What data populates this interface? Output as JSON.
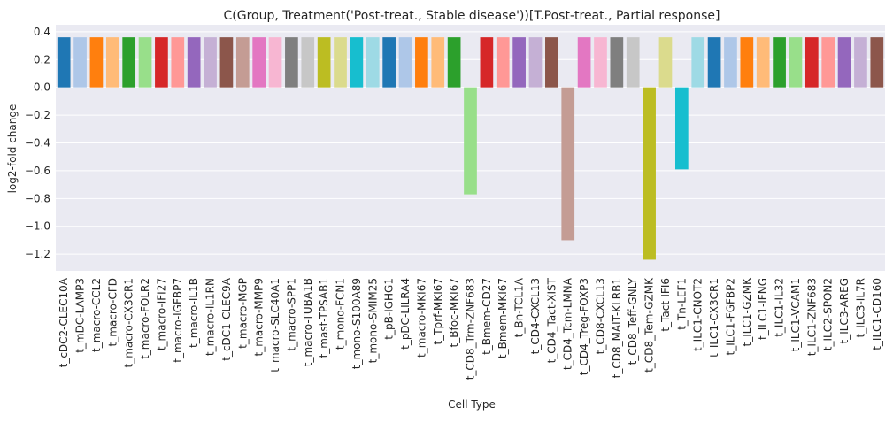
{
  "chart_data": {
    "type": "bar",
    "title": "C(Group, Treatment('Post-treat., Stable disease'))[T.Post-treat., Partial response]",
    "xlabel": "Cell Type",
    "ylabel": "log2-fold change",
    "ylim": [
      -1.32,
      0.45
    ],
    "yticks": [
      0.4,
      0.2,
      0.0,
      -0.2,
      -0.4,
      -0.6,
      -0.8,
      -1.0,
      -1.2
    ],
    "ytick_labels": [
      "0.4",
      "0.2",
      "0.0",
      "−0.2",
      "−0.4",
      "−0.6",
      "−0.8",
      "−1.0",
      "−1.2"
    ],
    "grid": true,
    "background": "#eaeaf2",
    "gridColor": "#ffffff",
    "palette": [
      "#1f77b4",
      "#aec7e8",
      "#ff7f0e",
      "#ffbb78",
      "#2ca02c",
      "#98df8a",
      "#d62728",
      "#ff9896",
      "#9467bd",
      "#c5b0d5",
      "#8c564b",
      "#c49c94",
      "#e377c2",
      "#f7b6d2",
      "#7f7f7f",
      "#c7c7c7",
      "#bcbd22",
      "#dbdb8d",
      "#17becf",
      "#9edae5"
    ],
    "categories": [
      "t_cDC2-CLEC10A",
      "t_mDC-LAMP3",
      "t_macro-CCL2",
      "t_macro-CFD",
      "t_macro-CX3CR1",
      "t_macro-FOLR2",
      "t_macro-IFI27",
      "t_macro-IGFBP7",
      "t_macro-IL1B",
      "t_macro-IL1RN",
      "t_cDC1-CLEC9A",
      "t_macro-MGP",
      "t_macro-MMP9",
      "t_macro-SLC40A1",
      "t_macro-SPP1",
      "t_macro-TUBA1B",
      "t_mast-TPSAB1",
      "t_mono-FCN1",
      "t_mono-S100A89",
      "t_mono-SMIM25",
      "t_pB-IGHG1",
      "t_pDC-LILRA4",
      "t_macro-MKI67",
      "t_Tprf-MKI67",
      "t_Bfoc-MKI67",
      "t_CD8_Trm-ZNF683",
      "t_Bmem-CD27",
      "t_Bmem-MKI67",
      "t_Bn-TCL1A",
      "t_CD4-CXCL13",
      "t_CD4_Tact-XIST",
      "t_CD4_Tcm-LMNA",
      "t_CD4_Treg-FOXP3",
      "t_CD8-CXCL13",
      "t_CD8_MAIT-KLRB1",
      "t_CD8_Teff-GNLY",
      "t_CD8_Tem-GZMK",
      "t_Tact-IFI6",
      "t_Tn-LEF1",
      "t_ILC1-CNOT2",
      "t_ILC1-CX3CR1",
      "t_ILC1-FGFBP2",
      "t_ILC1-GZMK",
      "t_ILC1-IFNG",
      "t_ILC1-IL32",
      "t_ILC1-VCAM1",
      "t_ILC1-ZNF683",
      "t_ILC2-SPON2",
      "t_ILC3-AREG",
      "t_ILC3-IL7R",
      "t_ILC1-CD160"
    ],
    "values": [
      0.36,
      0.36,
      0.36,
      0.36,
      0.36,
      0.36,
      0.36,
      0.36,
      0.36,
      0.36,
      0.36,
      0.36,
      0.36,
      0.36,
      0.36,
      0.36,
      0.36,
      0.36,
      0.36,
      0.36,
      0.36,
      0.36,
      0.36,
      0.36,
      0.36,
      -0.77,
      0.36,
      0.36,
      0.36,
      0.36,
      0.36,
      -1.1,
      0.36,
      0.36,
      0.36,
      0.36,
      -1.24,
      0.36,
      -0.59,
      0.36,
      0.36,
      0.36,
      0.36,
      0.36,
      0.36,
      0.36,
      0.36,
      0.36,
      0.36,
      0.36,
      0.36
    ]
  }
}
